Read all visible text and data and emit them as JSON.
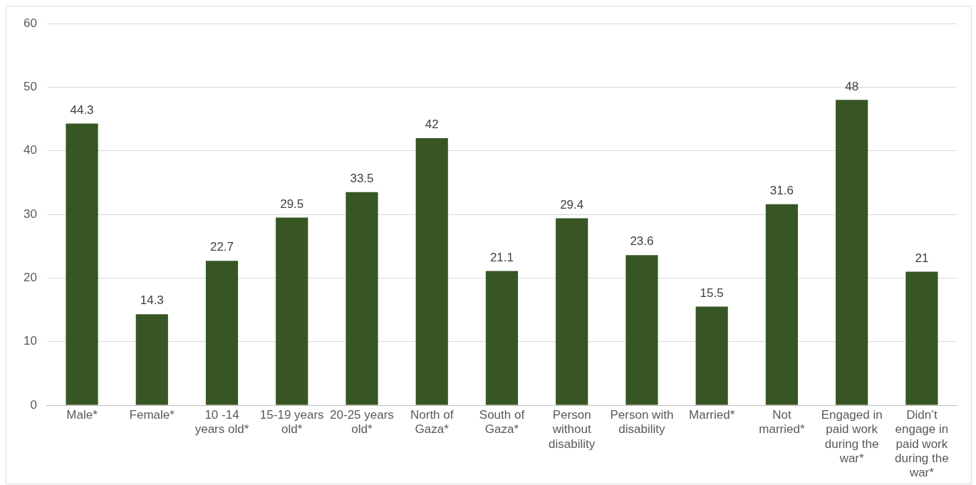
{
  "chart_data": {
    "type": "bar",
    "categories": [
      "Male*",
      "Female*",
      "10 -14 years old*",
      "15-19 years old*",
      "20-25 years old*",
      "North of Gaza*",
      "South of Gaza*",
      "Person without disability",
      "Person with disability",
      "Married*",
      "Not married*",
      "Engaged in paid work during the war*",
      "Didn’t engage in paid work during the war*"
    ],
    "values": [
      44.3,
      14.3,
      22.7,
      29.5,
      33.5,
      42,
      21.1,
      29.4,
      23.6,
      15.5,
      31.6,
      48,
      21
    ],
    "color": "#375623",
    "ylim": [
      0,
      60
    ],
    "yticks": [
      0,
      10,
      20,
      30,
      40,
      50,
      60
    ],
    "grid": "y",
    "data_labels": true
  }
}
